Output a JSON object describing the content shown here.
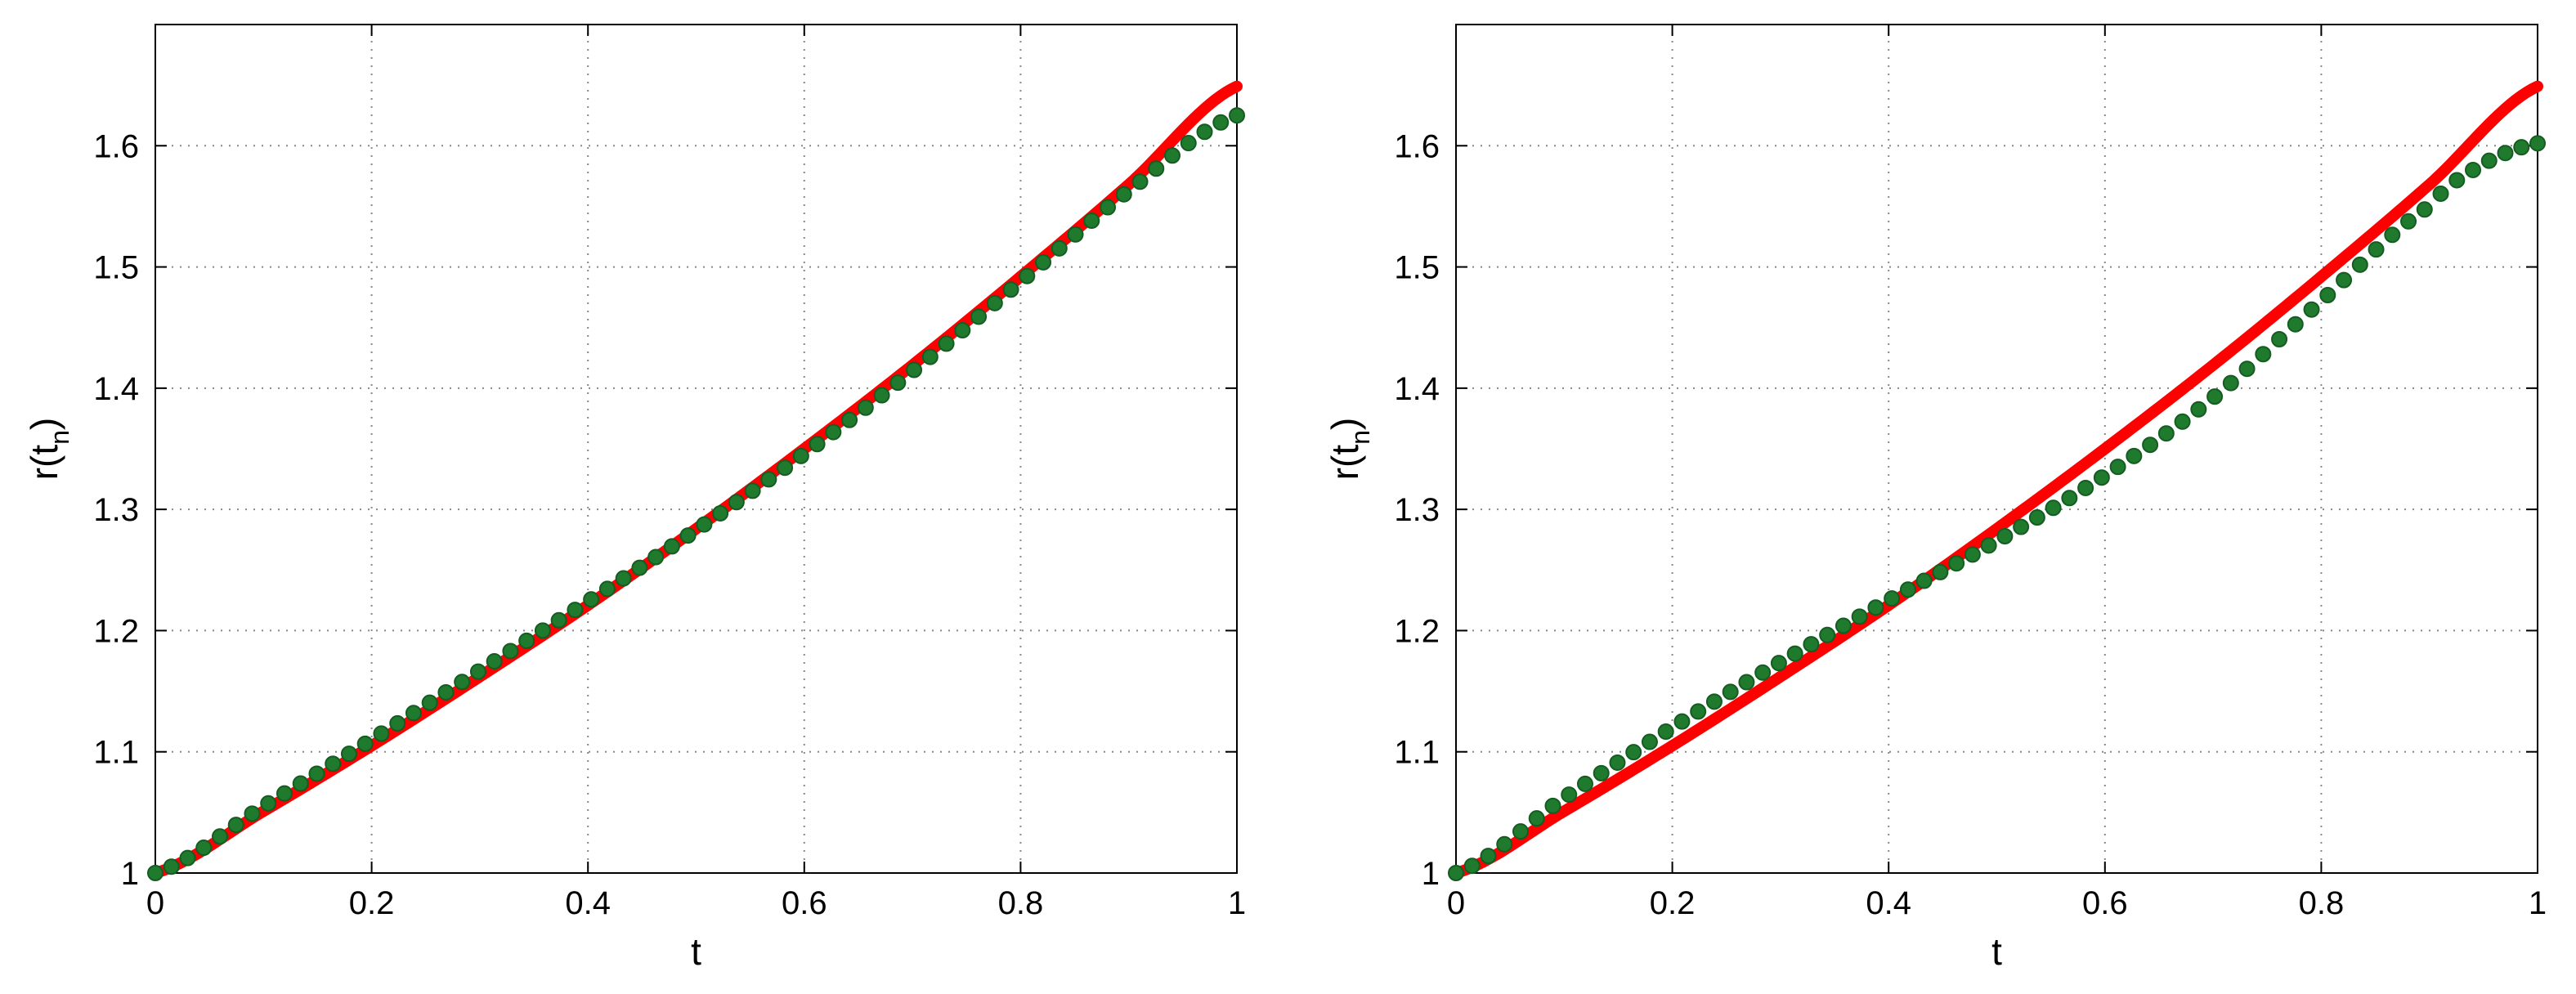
{
  "chart_data": [
    {
      "type": "line",
      "xlabel": "t",
      "ylabel_main": "r(t",
      "ylabel_sub": "n",
      "ylabel_close": ")",
      "xlim": [
        0,
        1
      ],
      "ylim": [
        1,
        1.7
      ],
      "x_ticks": [
        0,
        0.2,
        0.4,
        0.6,
        0.8,
        1
      ],
      "x_tick_labels": [
        "0",
        "0.2",
        "0.4",
        "0.6",
        "0.8",
        "1"
      ],
      "y_ticks": [
        1,
        1.1,
        1.2,
        1.3,
        1.4,
        1.5,
        1.6
      ],
      "y_tick_labels": [
        "1",
        "1.1",
        "1.2",
        "1.3",
        "1.4",
        "1.5",
        "1.6"
      ],
      "grid": true,
      "series": [
        {
          "style": "line",
          "color": "#ff0000",
          "x": [
            0,
            0.1,
            0.2,
            0.3,
            0.4,
            0.5,
            0.6,
            0.7,
            0.8,
            0.9,
            1.0
          ],
          "y": [
            1.0,
            1.051,
            1.105,
            1.162,
            1.221,
            1.284,
            1.35,
            1.419,
            1.492,
            1.568,
            1.649
          ]
        },
        {
          "style": "markers",
          "color": "#1f7a2e",
          "x": [
            0,
            0.1,
            0.2,
            0.3,
            0.4,
            0.5,
            0.6,
            0.7,
            0.8,
            0.9,
            1.0
          ],
          "y": [
            1.0,
            1.055,
            1.11,
            1.167,
            1.224,
            1.283,
            1.346,
            1.414,
            1.488,
            1.563,
            1.625
          ]
        }
      ]
    },
    {
      "type": "line",
      "xlabel": "t",
      "ylabel_main": "r(t",
      "ylabel_sub": "n",
      "ylabel_close": ")",
      "xlim": [
        0,
        1
      ],
      "ylim": [
        1,
        1.7
      ],
      "x_ticks": [
        0,
        0.2,
        0.4,
        0.6,
        0.8,
        1
      ],
      "x_tick_labels": [
        "0",
        "0.2",
        "0.4",
        "0.6",
        "0.8",
        "1"
      ],
      "y_ticks": [
        1,
        1.1,
        1.2,
        1.3,
        1.4,
        1.5,
        1.6
      ],
      "y_tick_labels": [
        "1",
        "1.1",
        "1.2",
        "1.3",
        "1.4",
        "1.5",
        "1.6"
      ],
      "grid": true,
      "series": [
        {
          "style": "line",
          "color": "#ff0000",
          "x": [
            0,
            0.1,
            0.2,
            0.3,
            0.4,
            0.5,
            0.6,
            0.7,
            0.8,
            0.9,
            1.0
          ],
          "y": [
            1.0,
            1.051,
            1.105,
            1.162,
            1.221,
            1.284,
            1.35,
            1.419,
            1.492,
            1.568,
            1.649
          ]
        },
        {
          "style": "markers",
          "color": "#1f7a2e",
          "x": [
            0,
            0.1,
            0.2,
            0.3,
            0.4,
            0.5,
            0.6,
            0.7,
            0.8,
            0.9,
            0.95,
            1.0
          ],
          "y": [
            1.0,
            1.062,
            1.12,
            1.174,
            1.225,
            1.274,
            1.328,
            1.392,
            1.472,
            1.55,
            1.585,
            1.602
          ]
        }
      ]
    }
  ]
}
